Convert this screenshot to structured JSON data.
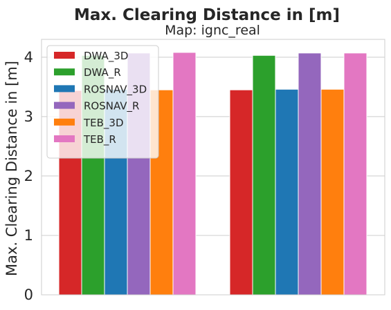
{
  "chart_data": {
    "type": "bar",
    "title": "Max. Clearing Distance in [m]",
    "subtitle": "Map: ignc_real",
    "xlabel": "",
    "ylabel": "Max. Clearing Distance in [m]",
    "ylim": [
      0,
      4.3
    ],
    "yticks": [
      "0",
      "1",
      "2",
      "3",
      "4"
    ],
    "grid": true,
    "legend_position": "top-left",
    "categories": [
      "",
      ""
    ],
    "series": [
      {
        "name": "DWA_3D",
        "color": "#d62728",
        "values": [
          3.44,
          3.45
        ]
      },
      {
        "name": "DWA_R",
        "color": "#2ca02c",
        "values": [
          4.03,
          4.03
        ]
      },
      {
        "name": "ROSNAV_3D",
        "color": "#1f77b4",
        "values": [
          3.46,
          3.46
        ]
      },
      {
        "name": "ROSNAV_R",
        "color": "#9467bd",
        "values": [
          4.07,
          4.07
        ]
      },
      {
        "name": "TEB_3D",
        "color": "#ff7f0e",
        "values": [
          3.45,
          3.46
        ]
      },
      {
        "name": "TEB_R",
        "color": "#e377c2",
        "values": [
          4.08,
          4.07
        ]
      }
    ]
  }
}
